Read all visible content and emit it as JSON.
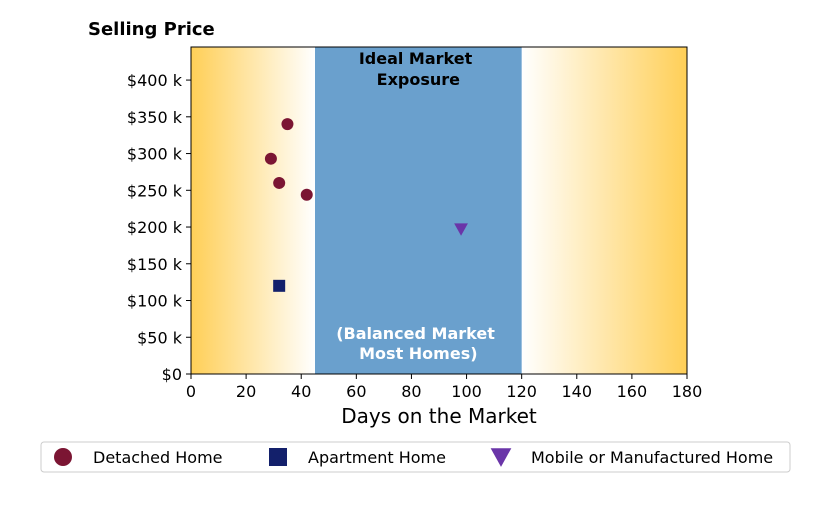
{
  "chart_data": {
    "type": "scatter",
    "title": "Selling Price",
    "xlabel": "Days on the Market",
    "ylabel": "",
    "xlim": [
      0,
      180
    ],
    "ylim": [
      0,
      445000
    ],
    "x_ticks": [
      0,
      20,
      40,
      60,
      80,
      100,
      120,
      140,
      160,
      180
    ],
    "x_tick_labels": [
      "0",
      "20",
      "40",
      "60",
      "80",
      "100",
      "120",
      "140",
      "160",
      "180"
    ],
    "y_ticks": [
      0,
      50000,
      100000,
      150000,
      200000,
      250000,
      300000,
      350000,
      400000
    ],
    "y_tick_labels": [
      "$0",
      "$50 k",
      "$100 k",
      "$150 k",
      "$200 k",
      "$250 k",
      "$300 k",
      "$350 k",
      "$400 k"
    ],
    "grid": false,
    "background": {
      "edge_color": "#ffcf57",
      "center_color": "#ffffff",
      "fade_start_day": 0,
      "fade_end_day": 45
    },
    "band": {
      "x_start": 45,
      "x_end": 120,
      "color": "#6aa0cd",
      "top_label_lines": [
        "Ideal Market",
        "Exposure"
      ],
      "top_label_color": "#000000",
      "bottom_label_lines": [
        "(Balanced Market",
        "Most Homes)"
      ],
      "bottom_label_color": "#ffffff"
    },
    "series": [
      {
        "name": "Detached Home",
        "marker": "circle",
        "color": "#7b1533",
        "points": [
          {
            "x": 35,
            "y": 340000
          },
          {
            "x": 29,
            "y": 293000
          },
          {
            "x": 32,
            "y": 260000
          },
          {
            "x": 42,
            "y": 244000
          }
        ]
      },
      {
        "name": "Apartment Home",
        "marker": "square",
        "color": "#13206b",
        "points": [
          {
            "x": 32,
            "y": 120000
          }
        ]
      },
      {
        "name": "Mobile or Manufactured Home",
        "marker": "triangle-down",
        "color": "#6a35a8",
        "points": [
          {
            "x": 98,
            "y": 197000
          }
        ]
      }
    ],
    "legend_placement": "bottom"
  }
}
